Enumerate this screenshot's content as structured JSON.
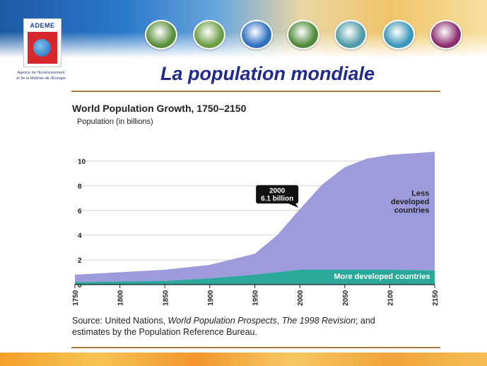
{
  "header": {
    "logo_text": "ADEME",
    "agency_line1": "Agence de l'Environnement",
    "agency_line2": "et de la Maîtrise de l'Énergie",
    "nav_icons": [
      {
        "name": "balloon-icon",
        "color": "#5a8f3a"
      },
      {
        "name": "france-map-icon",
        "color": "#6b9e44"
      },
      {
        "name": "sun-network-icon",
        "color": "#2f6fc0"
      },
      {
        "name": "house-icon",
        "color": "#4f8a3a"
      },
      {
        "name": "chart-icon",
        "color": "#4e9aa6"
      },
      {
        "name": "zigzag-icon",
        "color": "#3a97b8"
      },
      {
        "name": "hammer-icon",
        "color": "#8c2e6e"
      }
    ]
  },
  "slide": {
    "title": "La population mondiale",
    "source_line1_a": "Source: United Nations, ",
    "source_line1_b": "World Population Prospects",
    "source_line1_c": ", ",
    "source_line1_d": "The 1998 Revision",
    "source_line1_e": "; and",
    "source_line2": "estimates by the Population Reference Bureau."
  },
  "chart_data": {
    "type": "area",
    "title": "World Population Growth, 1750–2150",
    "ylabel": "Population (in billions)",
    "xlabel": "",
    "x": [
      1750,
      1800,
      1850,
      1900,
      1950,
      1975,
      2000,
      2025,
      2050,
      2075,
      2100,
      2150
    ],
    "xticks": [
      1750,
      1800,
      1850,
      1900,
      1950,
      2000,
      2050,
      2100,
      2150
    ],
    "yticks": [
      0,
      2,
      4,
      6,
      8,
      10
    ],
    "xlim": [
      1750,
      2150
    ],
    "ylim": [
      0,
      11
    ],
    "series": [
      {
        "name": "More developed countries",
        "values": [
          0.2,
          0.25,
          0.3,
          0.5,
          0.8,
          1.0,
          1.2,
          1.2,
          1.2,
          1.2,
          1.2,
          1.15
        ],
        "color": "#2aa89a"
      },
      {
        "name": "Less developed countries",
        "values": [
          0.6,
          0.75,
          0.9,
          1.1,
          1.7,
          3.0,
          4.9,
          6.9,
          8.3,
          9.0,
          9.3,
          9.6
        ],
        "color": "#9d9bdc"
      }
    ],
    "annotations": [
      {
        "line1": "2000",
        "line2": "6.1 billion",
        "x": 2000,
        "y": 6.1
      }
    ],
    "grid": true
  }
}
